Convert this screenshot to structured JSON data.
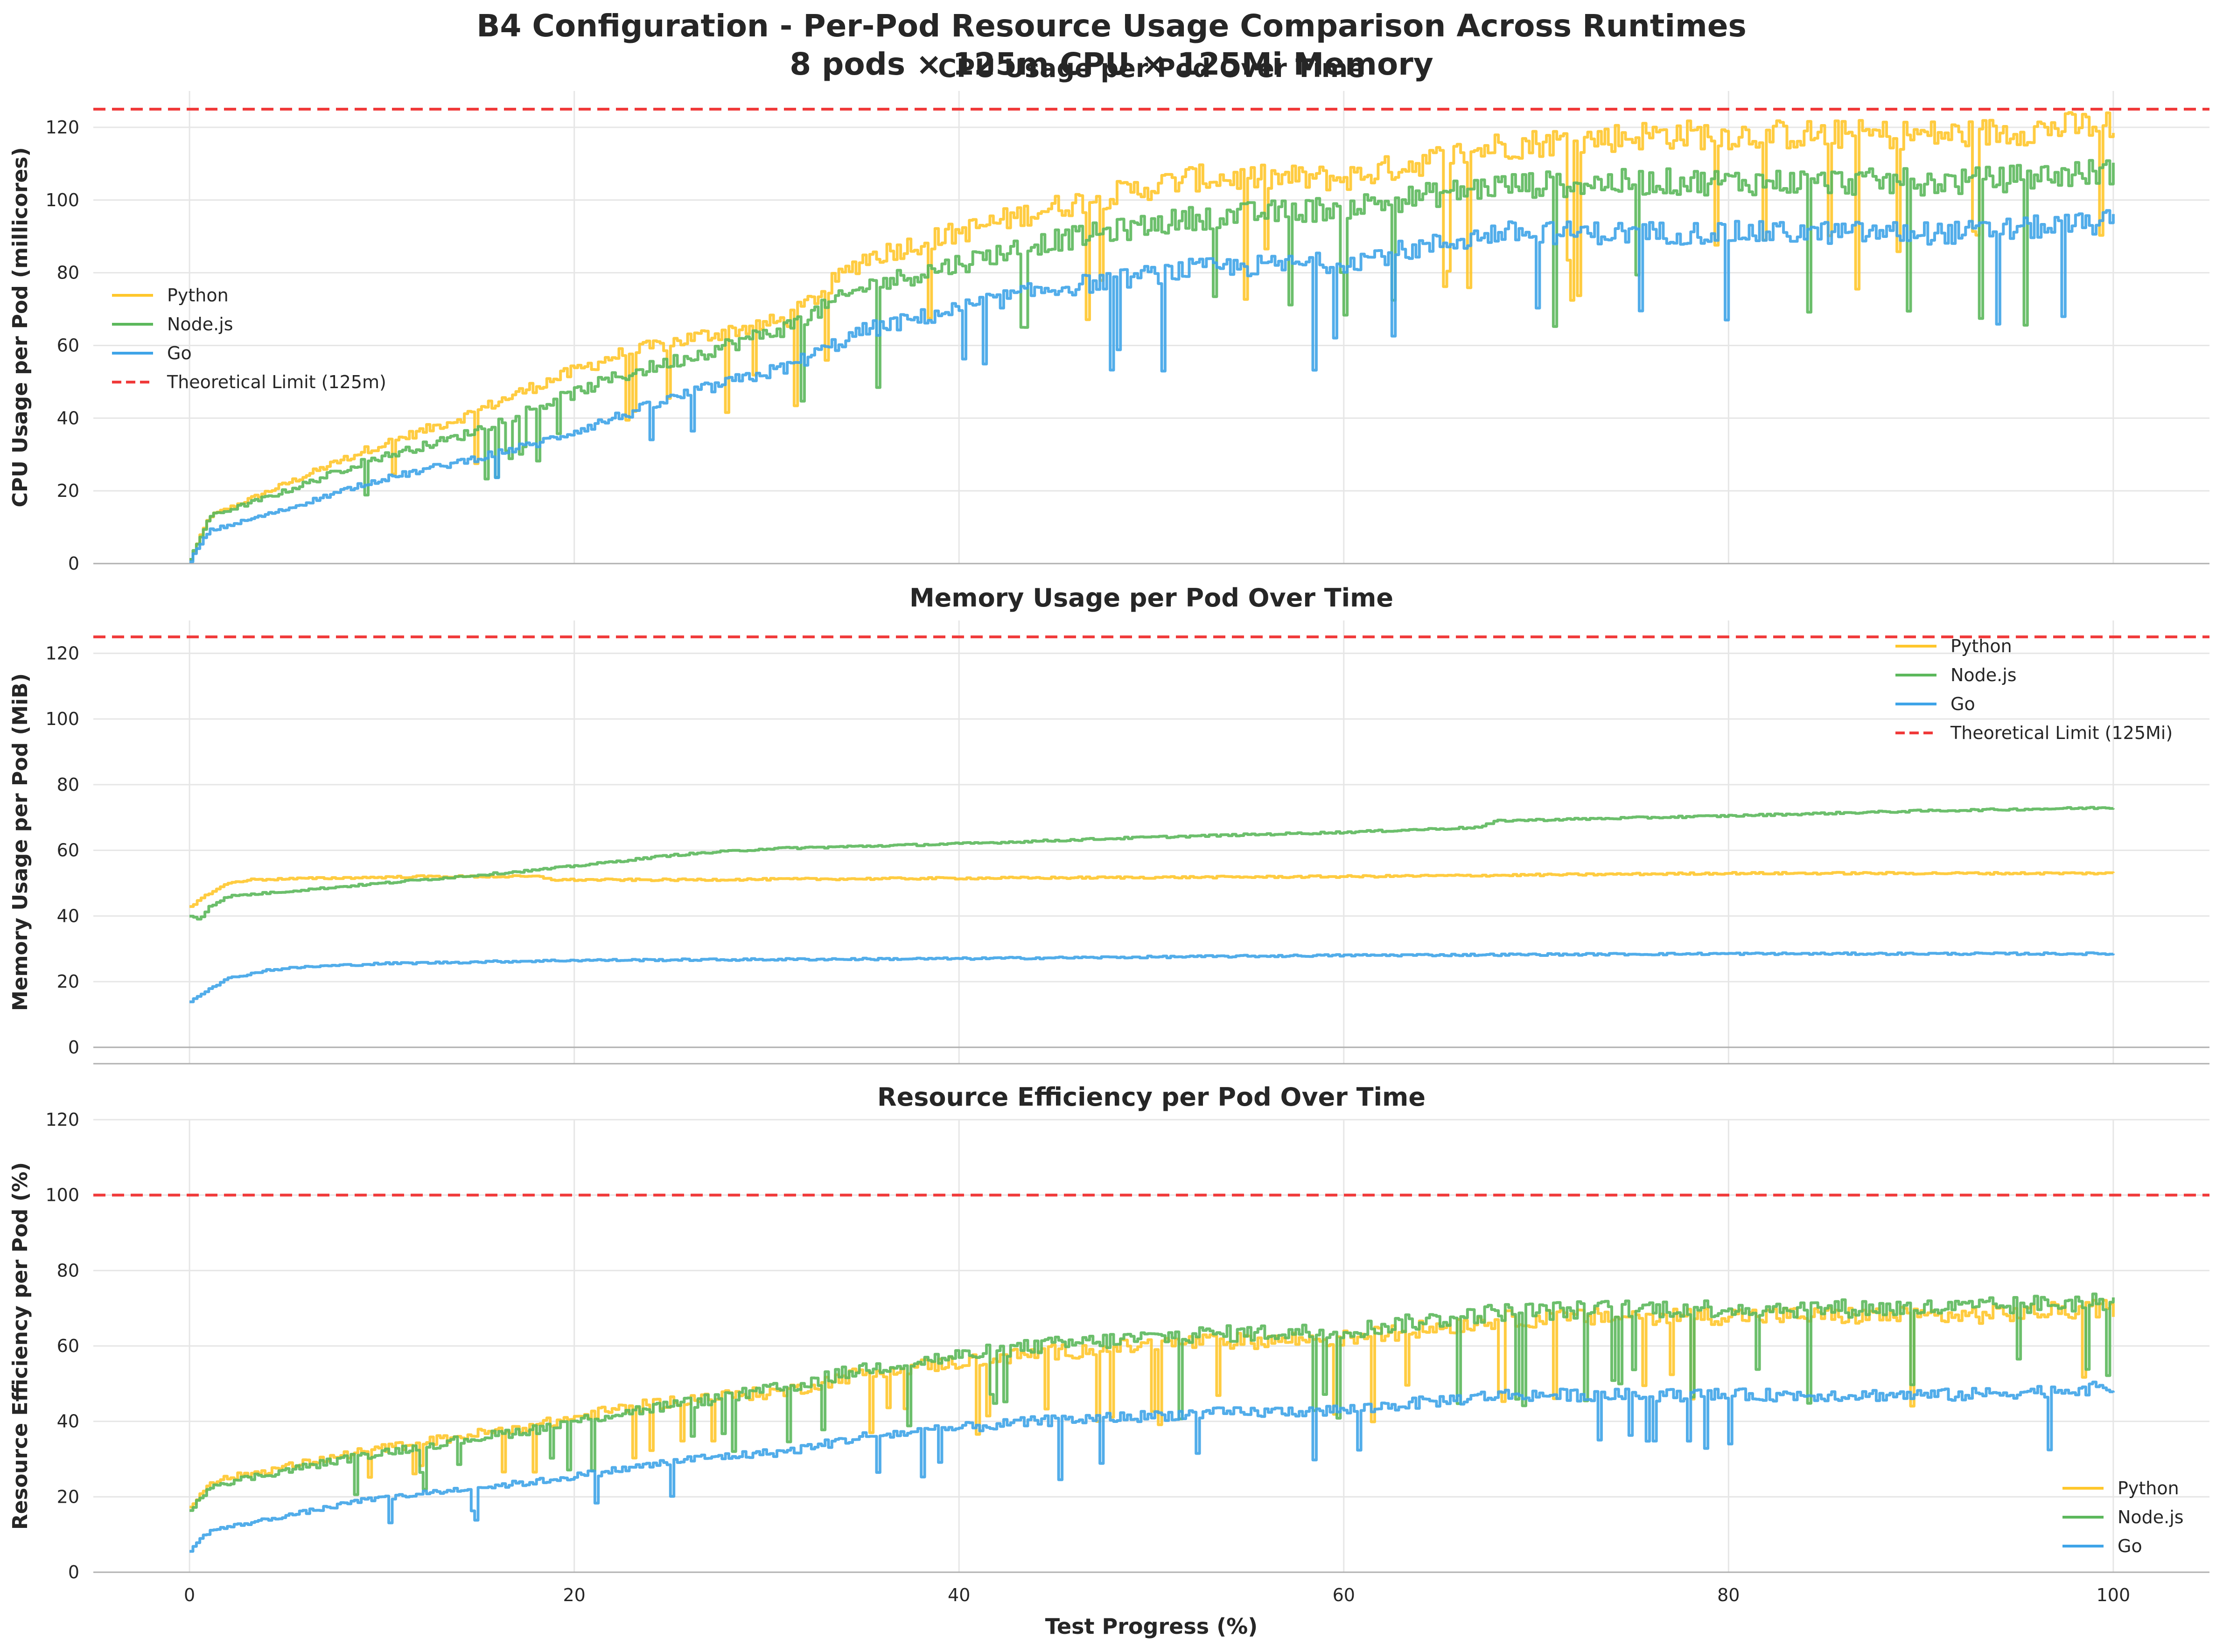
{
  "figure": {
    "title_line1": "B4 Configuration - Per-Pod Resource Usage Comparison Across Runtimes",
    "title_line2": "8 pods × 125m CPU × 125Mi Memory"
  },
  "colors": {
    "python": "#FFC72C",
    "nodejs": "#5CB85C",
    "go": "#3FA4E8",
    "limit": "#F03A3A",
    "grid": "#E6E6E6",
    "axis": "#B0B0B0",
    "text": "#262626"
  },
  "chart_data": [
    {
      "type": "line",
      "title": "CPU Usage per Pod Over Time",
      "xlabel": "",
      "ylabel": "CPU Usage per Pod (millicores)",
      "xlim": [
        -5,
        105
      ],
      "ylim": [
        0,
        130
      ],
      "x_ticks": [
        0,
        20,
        40,
        60,
        80,
        100
      ],
      "y_ticks": [
        0,
        20,
        40,
        60,
        80,
        100,
        120
      ],
      "show_x_tick_labels": false,
      "grid": true,
      "legend_position": "center-left",
      "limit": {
        "name": "Theoretical Limit (125m)",
        "value": 125
      },
      "series": [
        {
          "name": "Python",
          "key": "python",
          "x": [
            0,
            1,
            5,
            9,
            14,
            18,
            22,
            26,
            31,
            35,
            44,
            52,
            60,
            68,
            76,
            84,
            92,
            100
          ],
          "values": [
            1,
            13,
            22,
            31,
            40,
            49,
            57,
            62,
            67,
            84,
            97,
            106,
            106,
            115,
            118,
            118,
            118,
            121
          ]
        },
        {
          "name": "Node.js",
          "key": "nodejs",
          "x": [
            0,
            1,
            5,
            9,
            14,
            18,
            22,
            26,
            31,
            35,
            44,
            52,
            60,
            68,
            76,
            84,
            92,
            100
          ],
          "values": [
            1,
            13,
            20,
            28,
            35,
            43,
            51,
            57,
            65,
            76,
            88,
            95,
            98,
            104,
            105,
            105,
            105,
            108
          ]
        },
        {
          "name": "Go",
          "key": "go",
          "x": [
            0,
            1,
            5,
            9,
            14,
            18,
            22,
            26,
            31,
            35,
            44,
            52,
            60,
            68,
            76,
            84,
            92,
            100
          ],
          "values": [
            1,
            9,
            15,
            22,
            28,
            33,
            40,
            47,
            54,
            64,
            75,
            81,
            83,
            91,
            91,
            91,
            91,
            94
          ]
        }
      ]
    },
    {
      "type": "line",
      "title": "Memory Usage per Pod Over Time",
      "xlabel": "",
      "ylabel": "Memory Usage per Pod (MiB)",
      "xlim": [
        -5,
        105
      ],
      "ylim": [
        -5,
        130
      ],
      "x_ticks": [
        0,
        20,
        40,
        60,
        80,
        100
      ],
      "y_ticks": [
        0,
        20,
        40,
        60,
        80,
        100,
        120
      ],
      "show_x_tick_labels": false,
      "grid": true,
      "legend_position": "top-right",
      "limit": {
        "name": "Theoretical Limit (125Mi)",
        "value": 125
      },
      "series": [
        {
          "name": "Python",
          "key": "python",
          "x": [
            0,
            1,
            2,
            3,
            5,
            8,
            12,
            16,
            18,
            19,
            25,
            40,
            60,
            80,
            100
          ],
          "values": [
            43,
            47,
            50,
            51,
            51.3,
            51.6,
            52,
            52,
            52,
            51,
            51,
            51.5,
            52,
            53,
            53
          ]
        },
        {
          "name": "Node.js",
          "key": "nodejs",
          "x": [
            0,
            0.5,
            1,
            2,
            4,
            6,
            10,
            14,
            18,
            22,
            25,
            30,
            40,
            50,
            60,
            67,
            68,
            80,
            90,
            100
          ],
          "values": [
            40,
            39,
            43,
            46,
            47,
            48,
            50,
            52,
            54,
            56.5,
            58.5,
            60.5,
            62,
            64,
            65.5,
            67,
            69,
            70.5,
            72,
            73
          ]
        },
        {
          "name": "Go",
          "key": "go",
          "x": [
            0,
            1,
            2,
            4,
            6,
            10,
            20,
            40,
            60,
            80,
            100
          ],
          "values": [
            14,
            18,
            21,
            23.5,
            24.5,
            25.5,
            26.5,
            27,
            28,
            28.5,
            28.5
          ]
        }
      ]
    },
    {
      "type": "line",
      "title": "Resource Efficiency per Pod Over Time",
      "xlabel": "Test Progress (%)",
      "ylabel": "Resource Efficiency per Pod (%)",
      "xlim": [
        -5,
        105
      ],
      "ylim": [
        0,
        120
      ],
      "x_ticks": [
        0,
        20,
        40,
        60,
        80,
        100
      ],
      "y_ticks": [
        0,
        20,
        40,
        60,
        80,
        100,
        120
      ],
      "show_x_tick_labels": true,
      "grid": true,
      "legend_position": "bottom-right",
      "limit": {
        "name": "",
        "value": 100
      },
      "series": [
        {
          "name": "Python",
          "key": "python",
          "x": [
            0,
            1,
            5,
            9,
            14,
            18,
            22,
            26,
            31,
            35,
            44,
            52,
            60,
            68,
            76,
            84,
            92,
            100
          ],
          "values": [
            17,
            24,
            28,
            32,
            36,
            39,
            43,
            46,
            48,
            53,
            58,
            61,
            62,
            67,
            68,
            68,
            68,
            70
          ]
        },
        {
          "name": "Node.js",
          "key": "nodejs",
          "x": [
            0,
            1,
            5,
            9,
            14,
            18,
            22,
            26,
            31,
            35,
            44,
            52,
            60,
            68,
            76,
            84,
            92,
            100
          ],
          "values": [
            16,
            23,
            27,
            31,
            35,
            38,
            42,
            45,
            49,
            54,
            60,
            63,
            64,
            69,
            70,
            70,
            70,
            72
          ]
        },
        {
          "name": "Go",
          "key": "go",
          "x": [
            0,
            1,
            5,
            9,
            14,
            18,
            22,
            26,
            31,
            35,
            44,
            52,
            60,
            68,
            76,
            84,
            92,
            100
          ],
          "values": [
            6,
            11,
            15,
            19,
            22,
            24,
            27,
            30,
            32,
            36,
            40,
            42,
            43,
            47,
            47,
            47,
            47,
            49
          ]
        }
      ]
    }
  ]
}
